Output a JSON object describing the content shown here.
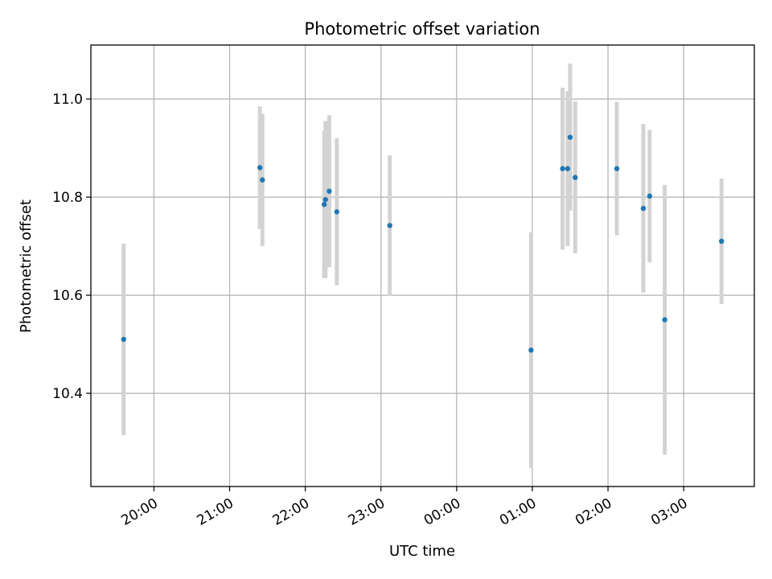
{
  "chart_data": {
    "type": "scatter",
    "title": "Photometric offset variation",
    "xlabel": "UTC time",
    "ylabel": "Photometric offset",
    "x_ticks": [
      "20:00",
      "21:00",
      "22:00",
      "23:00",
      "00:00",
      "01:00",
      "02:00",
      "03:00"
    ],
    "y_ticks": [
      "10.4",
      "10.6",
      "10.8",
      "11.0"
    ],
    "ylim": [
      10.21,
      11.11
    ],
    "xlim": [
      "19:10",
      "03:56"
    ],
    "grid": true,
    "colors": {
      "marker": "#1f77b4",
      "errorbar": "#d3d3d3"
    },
    "points": [
      {
        "x": "19:36",
        "y": 10.51,
        "err": 0.195
      },
      {
        "x": "21:24",
        "y": 10.86,
        "err": 0.125
      },
      {
        "x": "21:26",
        "y": 10.835,
        "err": 0.135
      },
      {
        "x": "22:15",
        "y": 10.785,
        "err": 0.15
      },
      {
        "x": "22:16",
        "y": 10.795,
        "err": 0.16
      },
      {
        "x": "22:19",
        "y": 10.812,
        "err": 0.155
      },
      {
        "x": "22:25",
        "y": 10.77,
        "err": 0.15
      },
      {
        "x": "23:07",
        "y": 10.742,
        "err": 0.143
      },
      {
        "x": "00:59",
        "y": 10.488,
        "err": 0.24
      },
      {
        "x": "01:24",
        "y": 10.858,
        "err": 0.165
      },
      {
        "x": "01:28",
        "y": 10.858,
        "err": 0.158
      },
      {
        "x": "01:30",
        "y": 10.922,
        "err": 0.15
      },
      {
        "x": "01:34",
        "y": 10.84,
        "err": 0.155
      },
      {
        "x": "02:07",
        "y": 10.858,
        "err": 0.136
      },
      {
        "x": "02:28",
        "y": 10.777,
        "err": 0.172
      },
      {
        "x": "02:33",
        "y": 10.802,
        "err": 0.135
      },
      {
        "x": "02:45",
        "y": 10.55,
        "err": 0.275
      },
      {
        "x": "03:30",
        "y": 10.71,
        "err": 0.128
      }
    ]
  }
}
